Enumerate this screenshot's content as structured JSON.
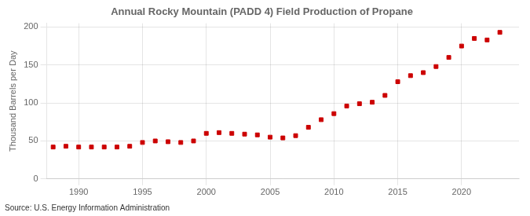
{
  "chart_data": {
    "type": "scatter",
    "title": "Annual Rocky Mountain (PADD 4) Field Production of Propane",
    "ylabel": "Thousand Barrels per Day",
    "source": "Source: U.S. Energy Information Administration",
    "x": [
      1988,
      1989,
      1990,
      1991,
      1992,
      1993,
      1994,
      1995,
      1996,
      1997,
      1998,
      1999,
      2000,
      2001,
      2002,
      2003,
      2004,
      2005,
      2006,
      2007,
      2008,
      2009,
      2010,
      2011,
      2012,
      2013,
      2014,
      2015,
      2016,
      2017,
      2018,
      2019,
      2020,
      2021,
      2022,
      2023
    ],
    "values": [
      42,
      43,
      42,
      42,
      42,
      42,
      43,
      48,
      50,
      49,
      48,
      50,
      60,
      61,
      60,
      59,
      58,
      55,
      54,
      57,
      68,
      78,
      86,
      96,
      99,
      101,
      110,
      128,
      136,
      140,
      148,
      160,
      175,
      185,
      183,
      193
    ],
    "color": "#cc0000",
    "marker": "square",
    "xlim": [
      1987.5,
      2024.5
    ],
    "xticks": [
      1990,
      1995,
      2000,
      2005,
      2010,
      2015,
      2020
    ],
    "ylim": [
      0,
      205
    ],
    "yticks": [
      0,
      50,
      100,
      150,
      200
    ],
    "grid": true
  }
}
